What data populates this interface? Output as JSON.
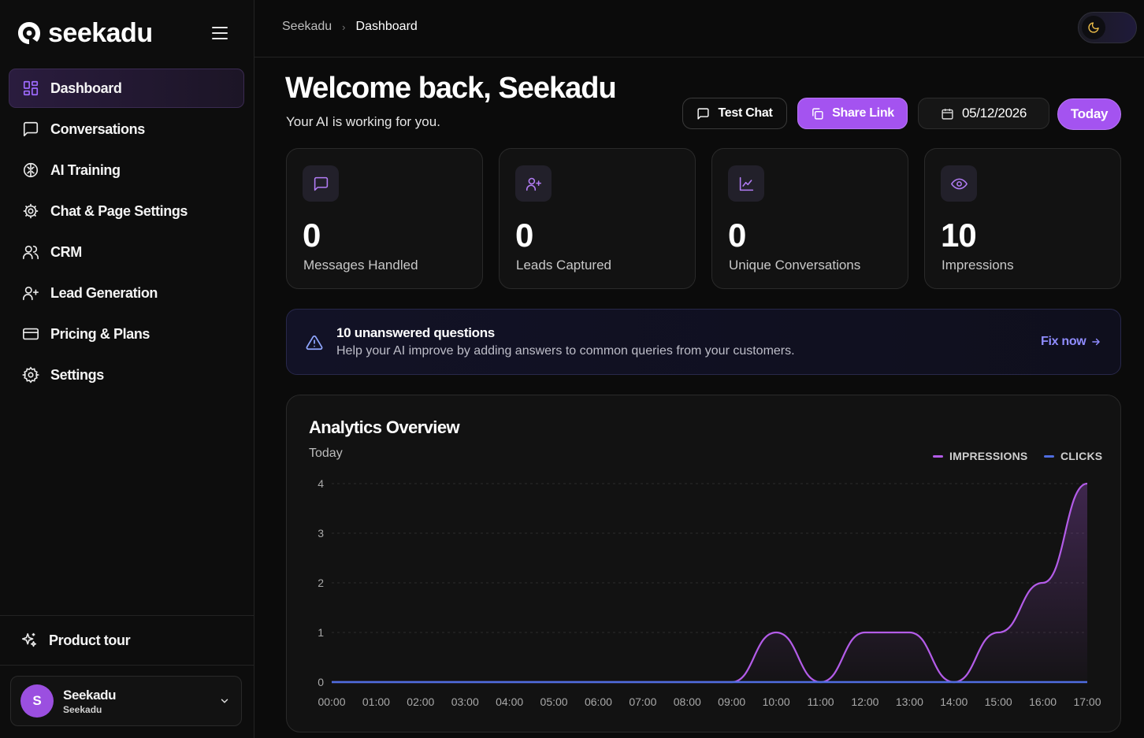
{
  "brand": {
    "name": "seekadu"
  },
  "sidebar": {
    "items": [
      {
        "label": "Dashboard",
        "icon": "dashboard-grid-icon",
        "active": true
      },
      {
        "label": "Conversations",
        "icon": "message-square-icon"
      },
      {
        "label": "AI Training",
        "icon": "brain-icon"
      },
      {
        "label": "Chat & Page Settings",
        "icon": "cog-icon"
      },
      {
        "label": "CRM",
        "icon": "users-icon"
      },
      {
        "label": "Lead Generation",
        "icon": "user-plus-icon"
      },
      {
        "label": "Pricing & Plans",
        "icon": "credit-card-icon"
      },
      {
        "label": "Settings",
        "icon": "settings-gear-icon"
      }
    ],
    "product_tour": "Product tour",
    "user": {
      "initial": "S",
      "name": "Seekadu",
      "org": "Seekadu"
    }
  },
  "topbar": {
    "breadcrumb_root": "Seekadu",
    "breadcrumb_sep": "›",
    "breadcrumb_current": "Dashboard"
  },
  "main": {
    "welcome": "Welcome back, Seekadu",
    "subtitle": "Your AI is working for you.",
    "actions": {
      "test_chat": "Test Chat",
      "share_link": "Share Link",
      "date": "05/12/2026",
      "today": "Today"
    },
    "stats": [
      {
        "value": "0",
        "label": "Messages Handled",
        "icon": "message-square-icon"
      },
      {
        "value": "0",
        "label": "Leads Captured",
        "icon": "user-plus-icon"
      },
      {
        "value": "0",
        "label": "Unique Conversations",
        "icon": "line-chart-icon"
      },
      {
        "value": "10",
        "label": "Impressions",
        "icon": "eye-icon"
      }
    ],
    "alert": {
      "title": "10 unanswered questions",
      "text": "Help your AI improve by adding answers to common queries from your customers.",
      "link": "Fix now"
    }
  },
  "colors": {
    "accent": "#a453f0",
    "impressions": "#b35ce8",
    "clicks": "#4f6de0",
    "link": "#8f8cff"
  },
  "chart_data": {
    "type": "area",
    "title": "Analytics Overview",
    "subtitle": "Today",
    "x": [
      "00:00",
      "01:00",
      "02:00",
      "03:00",
      "04:00",
      "05:00",
      "06:00",
      "07:00",
      "08:00",
      "09:00",
      "10:00",
      "11:00",
      "12:00",
      "13:00",
      "14:00",
      "15:00",
      "16:00",
      "17:00"
    ],
    "series": [
      {
        "name": "IMPRESSIONS",
        "values": [
          0,
          0,
          0,
          0,
          0,
          0,
          0,
          0,
          0,
          0,
          1,
          0,
          1,
          1,
          0,
          1,
          2,
          4
        ]
      },
      {
        "name": "CLICKS",
        "values": [
          0,
          0,
          0,
          0,
          0,
          0,
          0,
          0,
          0,
          0,
          0,
          0,
          0,
          0,
          0,
          0,
          0,
          0
        ]
      }
    ],
    "yticks": [
      0,
      1,
      2,
      3,
      4
    ],
    "ylim": [
      0,
      4
    ],
    "grid": true,
    "legend": "top-right"
  }
}
